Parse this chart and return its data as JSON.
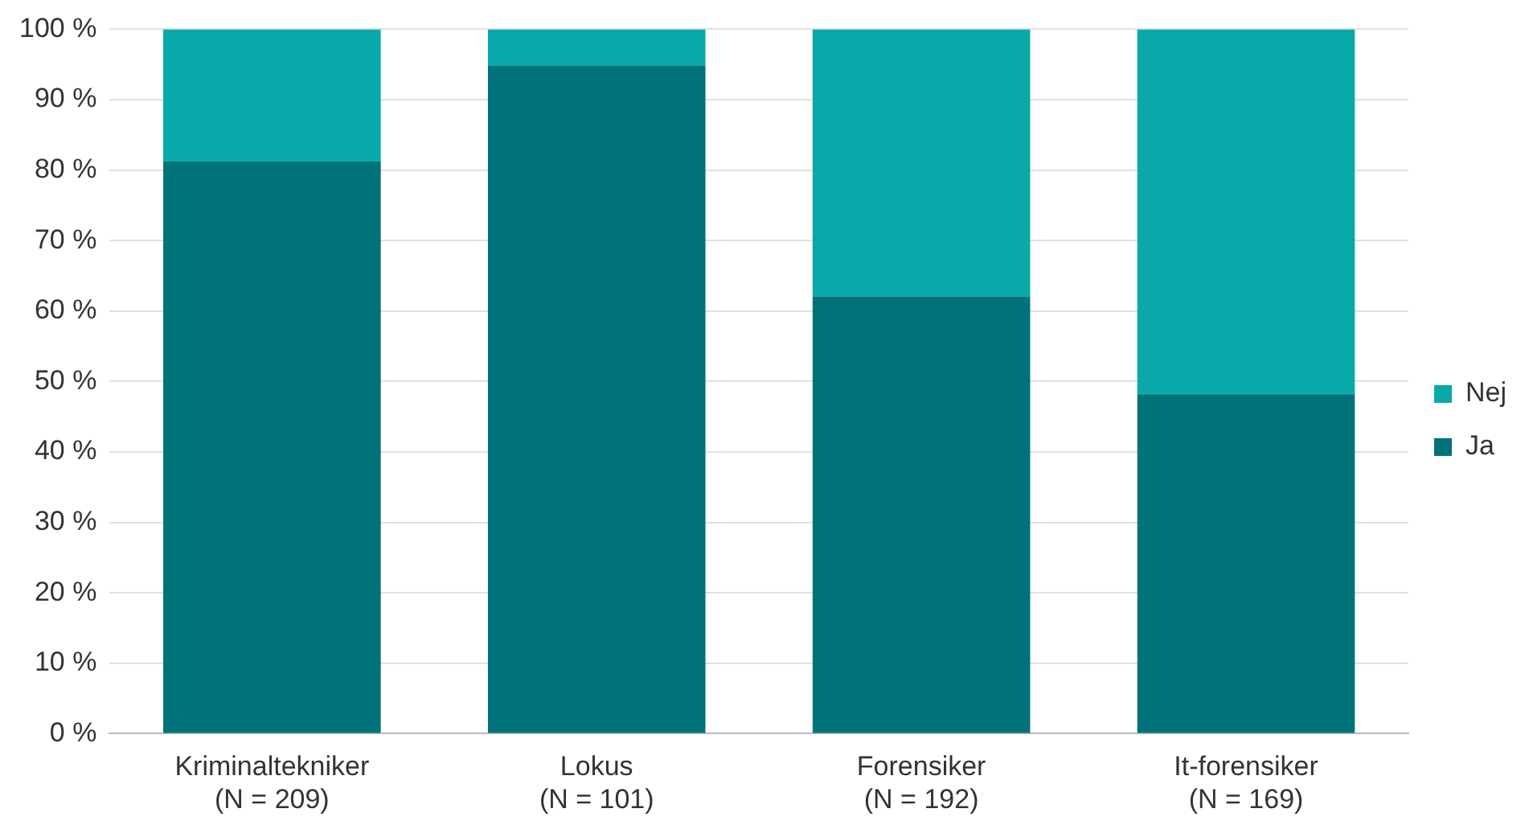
{
  "chart_data": {
    "type": "bar",
    "stacked": true,
    "categories": [
      "Kriminaltekniker\n(N = 209)",
      "Lokus\n(N = 101)",
      "Forensiker\n(N = 192)",
      "It-forensiker\n(N = 169)"
    ],
    "series": [
      {
        "name": "Ja",
        "color": "#00737a",
        "values": [
          81.2,
          94.8,
          62.1,
          48.2
        ]
      },
      {
        "name": "Nej",
        "color": "#0aa9a9",
        "values": [
          18.8,
          5.2,
          37.9,
          51.8
        ]
      }
    ],
    "ylim": [
      0,
      100
    ],
    "yticks": [
      {
        "value": 0,
        "label": "0 %"
      },
      {
        "value": 10,
        "label": "10 %"
      },
      {
        "value": 20,
        "label": "20 %"
      },
      {
        "value": 30,
        "label": "30 %"
      },
      {
        "value": 40,
        "label": "40 %"
      },
      {
        "value": 50,
        "label": "50 %"
      },
      {
        "value": 60,
        "label": "60 %"
      },
      {
        "value": 70,
        "label": "70 %"
      },
      {
        "value": 80,
        "label": "80 %"
      },
      {
        "value": 90,
        "label": "90 %"
      },
      {
        "value": 100,
        "label": "100 %"
      }
    ],
    "grid": "y",
    "legend": "right"
  }
}
